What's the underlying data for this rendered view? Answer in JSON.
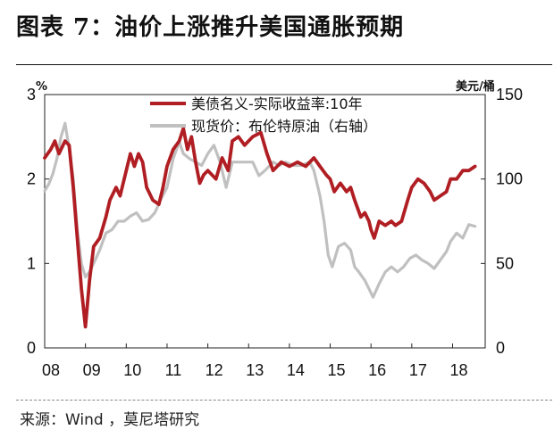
{
  "title": "图表 7：油价上涨推升美国通胀预期",
  "source": "来源：Wind ，莫尼塔研究",
  "chart_data": {
    "type": "line",
    "left_unit": "%",
    "right_unit": "美元/桶",
    "ylim_left": [
      0,
      3
    ],
    "ylim_right": [
      0,
      150
    ],
    "yticks_left": [
      "0",
      "1",
      "2",
      "3"
    ],
    "yticks_right": [
      "0",
      "50",
      "100",
      "150"
    ],
    "xlim": [
      2008,
      2018.8
    ],
    "xticks": [
      "08",
      "09",
      "10",
      "11",
      "12",
      "13",
      "14",
      "15",
      "16",
      "17",
      "18"
    ],
    "grid": false,
    "legend_position": "top",
    "series": [
      {
        "name": "美债名义-实际收益率:10年",
        "axis": "left",
        "color": "#b01e23",
        "points": [
          [
            2008.0,
            2.25
          ],
          [
            2008.15,
            2.35
          ],
          [
            2008.25,
            2.45
          ],
          [
            2008.35,
            2.3
          ],
          [
            2008.5,
            2.45
          ],
          [
            2008.6,
            2.4
          ],
          [
            2008.7,
            1.9
          ],
          [
            2008.8,
            1.3
          ],
          [
            2008.9,
            0.7
          ],
          [
            2009.0,
            0.25
          ],
          [
            2009.1,
            0.8
          ],
          [
            2009.2,
            1.2
          ],
          [
            2009.35,
            1.3
          ],
          [
            2009.5,
            1.55
          ],
          [
            2009.6,
            1.75
          ],
          [
            2009.75,
            1.9
          ],
          [
            2009.85,
            1.8
          ],
          [
            2010.0,
            2.1
          ],
          [
            2010.1,
            2.3
          ],
          [
            2010.2,
            2.15
          ],
          [
            2010.3,
            2.3
          ],
          [
            2010.4,
            2.2
          ],
          [
            2010.5,
            1.9
          ],
          [
            2010.65,
            1.75
          ],
          [
            2010.8,
            1.7
          ],
          [
            2010.9,
            1.9
          ],
          [
            2011.0,
            2.15
          ],
          [
            2011.15,
            2.35
          ],
          [
            2011.3,
            2.45
          ],
          [
            2011.4,
            2.6
          ],
          [
            2011.5,
            2.35
          ],
          [
            2011.6,
            2.5
          ],
          [
            2011.7,
            2.2
          ],
          [
            2011.8,
            1.95
          ],
          [
            2011.9,
            2.05
          ],
          [
            2012.0,
            2.1
          ],
          [
            2012.2,
            2.0
          ],
          [
            2012.35,
            2.25
          ],
          [
            2012.5,
            2.1
          ],
          [
            2012.6,
            2.45
          ],
          [
            2012.75,
            2.5
          ],
          [
            2012.9,
            2.4
          ],
          [
            2013.1,
            2.5
          ],
          [
            2013.3,
            2.55
          ],
          [
            2013.45,
            2.3
          ],
          [
            2013.6,
            2.1
          ],
          [
            2013.8,
            2.2
          ],
          [
            2014.0,
            2.15
          ],
          [
            2014.2,
            2.2
          ],
          [
            2014.4,
            2.15
          ],
          [
            2014.6,
            2.25
          ],
          [
            2014.75,
            2.15
          ],
          [
            2014.9,
            2.05
          ],
          [
            2015.0,
            2.0
          ],
          [
            2015.1,
            1.85
          ],
          [
            2015.25,
            1.95
          ],
          [
            2015.4,
            1.85
          ],
          [
            2015.5,
            1.9
          ],
          [
            2015.6,
            1.75
          ],
          [
            2015.75,
            1.55
          ],
          [
            2015.85,
            1.6
          ],
          [
            2015.95,
            1.5
          ],
          [
            2016.0,
            1.4
          ],
          [
            2016.08,
            1.3
          ],
          [
            2016.2,
            1.5
          ],
          [
            2016.35,
            1.45
          ],
          [
            2016.5,
            1.5
          ],
          [
            2016.6,
            1.45
          ],
          [
            2016.75,
            1.5
          ],
          [
            2016.9,
            1.75
          ],
          [
            2017.0,
            1.9
          ],
          [
            2017.15,
            2.0
          ],
          [
            2017.3,
            1.95
          ],
          [
            2017.45,
            1.85
          ],
          [
            2017.55,
            1.75
          ],
          [
            2017.7,
            1.8
          ],
          [
            2017.85,
            1.85
          ],
          [
            2017.95,
            2.0
          ],
          [
            2018.1,
            2.0
          ],
          [
            2018.25,
            2.1
          ],
          [
            2018.4,
            2.1
          ],
          [
            2018.55,
            2.15
          ]
        ]
      },
      {
        "name": "现货价：布伦特原油（右轴）",
        "axis": "right",
        "color": "#c0c0c0",
        "points": [
          [
            2008.0,
            93
          ],
          [
            2008.1,
            97
          ],
          [
            2008.2,
            103
          ],
          [
            2008.3,
            112
          ],
          [
            2008.4,
            125
          ],
          [
            2008.5,
            133
          ],
          [
            2008.6,
            118
          ],
          [
            2008.7,
            100
          ],
          [
            2008.8,
            70
          ],
          [
            2008.9,
            50
          ],
          [
            2009.0,
            42
          ],
          [
            2009.1,
            45
          ],
          [
            2009.2,
            50
          ],
          [
            2009.35,
            58
          ],
          [
            2009.5,
            68
          ],
          [
            2009.65,
            70
          ],
          [
            2009.8,
            75
          ],
          [
            2009.95,
            75
          ],
          [
            2010.1,
            78
          ],
          [
            2010.25,
            80
          ],
          [
            2010.4,
            75
          ],
          [
            2010.55,
            76
          ],
          [
            2010.7,
            80
          ],
          [
            2010.85,
            88
          ],
          [
            2011.0,
            95
          ],
          [
            2011.15,
            112
          ],
          [
            2011.3,
            122
          ],
          [
            2011.4,
            115
          ],
          [
            2011.55,
            112
          ],
          [
            2011.7,
            110
          ],
          [
            2011.85,
            108
          ],
          [
            2012.0,
            115
          ],
          [
            2012.15,
            120
          ],
          [
            2012.3,
            110
          ],
          [
            2012.45,
            95
          ],
          [
            2012.6,
            110
          ],
          [
            2012.75,
            110
          ],
          [
            2012.9,
            110
          ],
          [
            2013.1,
            110
          ],
          [
            2013.25,
            102
          ],
          [
            2013.4,
            105
          ],
          [
            2013.6,
            110
          ],
          [
            2013.75,
            108
          ],
          [
            2013.9,
            110
          ],
          [
            2014.1,
            108
          ],
          [
            2014.3,
            108
          ],
          [
            2014.5,
            110
          ],
          [
            2014.6,
            105
          ],
          [
            2014.75,
            90
          ],
          [
            2014.85,
            75
          ],
          [
            2014.95,
            55
          ],
          [
            2015.05,
            48
          ],
          [
            2015.2,
            60
          ],
          [
            2015.35,
            62
          ],
          [
            2015.5,
            58
          ],
          [
            2015.6,
            48
          ],
          [
            2015.7,
            45
          ],
          [
            2015.85,
            40
          ],
          [
            2015.95,
            35
          ],
          [
            2016.05,
            30
          ],
          [
            2016.2,
            38
          ],
          [
            2016.35,
            45
          ],
          [
            2016.5,
            48
          ],
          [
            2016.65,
            45
          ],
          [
            2016.8,
            48
          ],
          [
            2016.95,
            53
          ],
          [
            2017.1,
            55
          ],
          [
            2017.25,
            52
          ],
          [
            2017.4,
            50
          ],
          [
            2017.55,
            47
          ],
          [
            2017.7,
            52
          ],
          [
            2017.85,
            57
          ],
          [
            2017.95,
            63
          ],
          [
            2018.1,
            68
          ],
          [
            2018.25,
            65
          ],
          [
            2018.4,
            73
          ],
          [
            2018.55,
            72
          ]
        ]
      }
    ]
  }
}
